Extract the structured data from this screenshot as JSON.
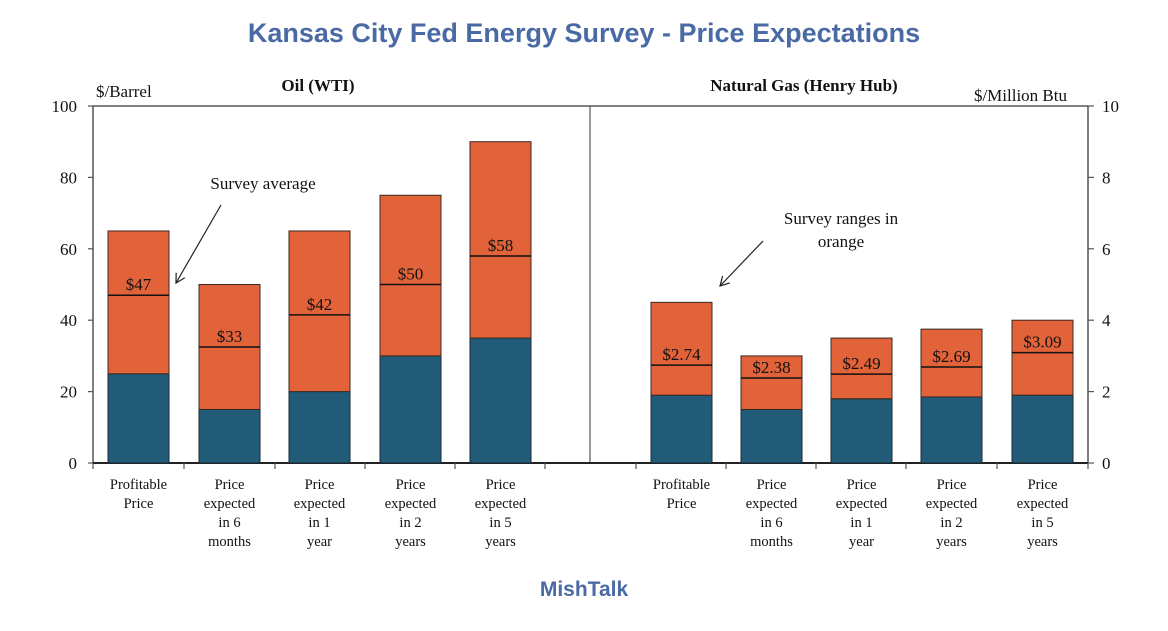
{
  "title": "Kansas City Fed Energy Survey - Price Expectations",
  "footer": "MishTalk",
  "colors": {
    "title": "#4a6aa5",
    "range": "#e2623a",
    "low": "#215b78",
    "axis": "#555555"
  },
  "chart_data": [
    {
      "type": "bar",
      "stacked": true,
      "title": "Oil (WTI)",
      "ylabel": "$/Barrel",
      "y_axis_side": "left",
      "ylim": [
        0,
        100
      ],
      "yticks": [
        0,
        20,
        40,
        60,
        80,
        100
      ],
      "grid": false,
      "categories": [
        [
          "Profitable",
          "Price"
        ],
        [
          "Price",
          "expected",
          "in 6",
          "months"
        ],
        [
          "Price",
          "expected",
          "in 1",
          "year"
        ],
        [
          "Price",
          "expected",
          "in 2",
          "years"
        ],
        [
          "Price",
          "expected",
          "in 5",
          "years"
        ]
      ],
      "range_low": [
        25,
        15,
        20,
        30,
        35
      ],
      "range_high": [
        65,
        50,
        65,
        75,
        90
      ],
      "average": [
        47,
        32.5,
        41.5,
        50,
        58
      ],
      "average_labels": [
        "$47",
        "$33",
        "$42",
        "$50",
        "$58"
      ],
      "annotation": "Survey average"
    },
    {
      "type": "bar",
      "stacked": true,
      "title": "Natural Gas (Henry Hub)",
      "ylabel": "$/Million Btu",
      "y_axis_side": "right",
      "ylim": [
        0,
        10
      ],
      "yticks": [
        0,
        2,
        4,
        6,
        8,
        10
      ],
      "grid": false,
      "categories": [
        [
          "Profitable",
          "Price"
        ],
        [
          "Price",
          "expected",
          "in 6",
          "months"
        ],
        [
          "Price",
          "expected",
          "in 1",
          "year"
        ],
        [
          "Price",
          "expected",
          "in 2",
          "years"
        ],
        [
          "Price",
          "expected",
          "in 5",
          "years"
        ]
      ],
      "range_low": [
        1.9,
        1.5,
        1.8,
        1.85,
        1.9
      ],
      "range_high": [
        4.5,
        3.0,
        3.5,
        3.75,
        4.0
      ],
      "average": [
        2.74,
        2.38,
        2.49,
        2.69,
        3.09
      ],
      "average_labels": [
        "$2.74",
        "$2.38",
        "$2.49",
        "$2.69",
        "$3.09"
      ],
      "annotation": [
        "Survey ranges in",
        "orange"
      ]
    }
  ]
}
